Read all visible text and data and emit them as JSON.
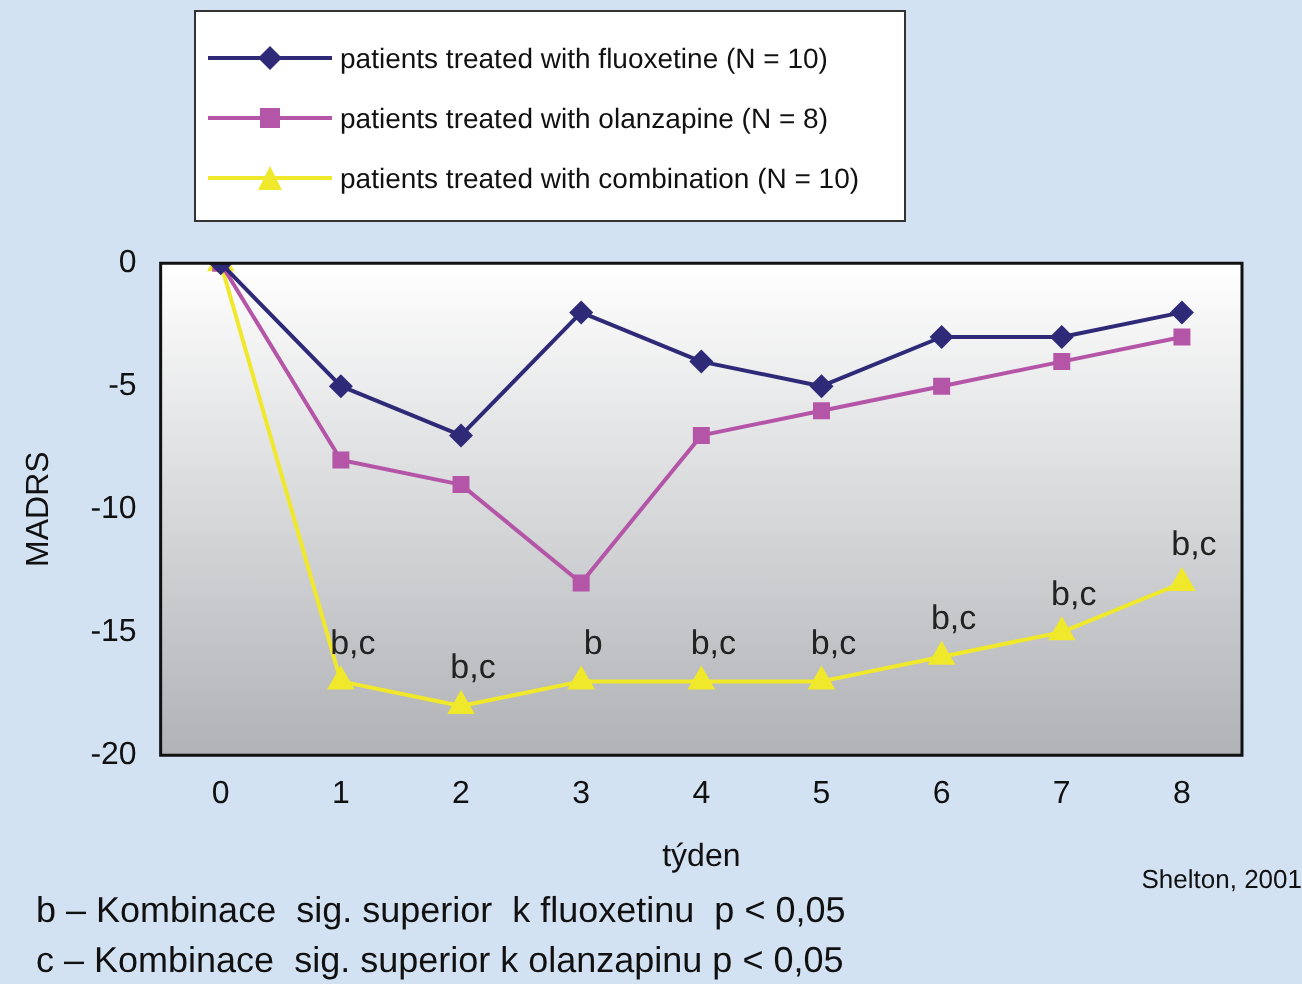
{
  "chart_data": {
    "type": "line",
    "xlabel": "týden",
    "ylabel": "MADRS",
    "categories": [
      "0",
      "1",
      "2",
      "3",
      "4",
      "5",
      "6",
      "7",
      "8"
    ],
    "series": [
      {
        "name": "patients treated with fluoxetine (N = 10)",
        "color": "#2e2a78",
        "marker": "diamond",
        "values": [
          0,
          -5,
          -7,
          -2,
          -4,
          -5,
          -3,
          -3,
          -2
        ]
      },
      {
        "name": "patients treated with olanzapine (N = 8)",
        "color": "#b455a8",
        "marker": "square",
        "values": [
          0,
          -8,
          -9,
          -13,
          -7,
          -6,
          -5,
          -4,
          -3
        ]
      },
      {
        "name": "patients treated with combination (N = 10)",
        "color": "#f0e82a",
        "marker": "triangle",
        "values": [
          0,
          -17,
          -18,
          -17,
          -17,
          -17,
          -16,
          -15,
          -13
        ]
      }
    ],
    "ylim": [
      -20,
      0
    ],
    "yticks": [
      -20,
      -15,
      -10,
      -5,
      0
    ],
    "grid": false,
    "legend": "top",
    "line_style": "solid",
    "annotations": [
      {
        "text": "b,c",
        "x": "1",
        "y": -17
      },
      {
        "text": "b,c",
        "x": "2",
        "y": -18
      },
      {
        "text": "b",
        "x": "3",
        "y": -17
      },
      {
        "text": "b,c",
        "x": "4",
        "y": -17
      },
      {
        "text": "b,c",
        "x": "5",
        "y": -17
      },
      {
        "text": "b,c",
        "x": "6",
        "y": -16
      },
      {
        "text": "b,c",
        "x": "7",
        "y": -15
      },
      {
        "text": "b,c",
        "x": "8",
        "y": -13
      },
      "b – Kombinace  sig. superior  k fluoxetinu  p < 0,05",
      "c – Kombinace  sig. superior k olanzapinu p < 0,05",
      "Shelton, 2001"
    ]
  }
}
